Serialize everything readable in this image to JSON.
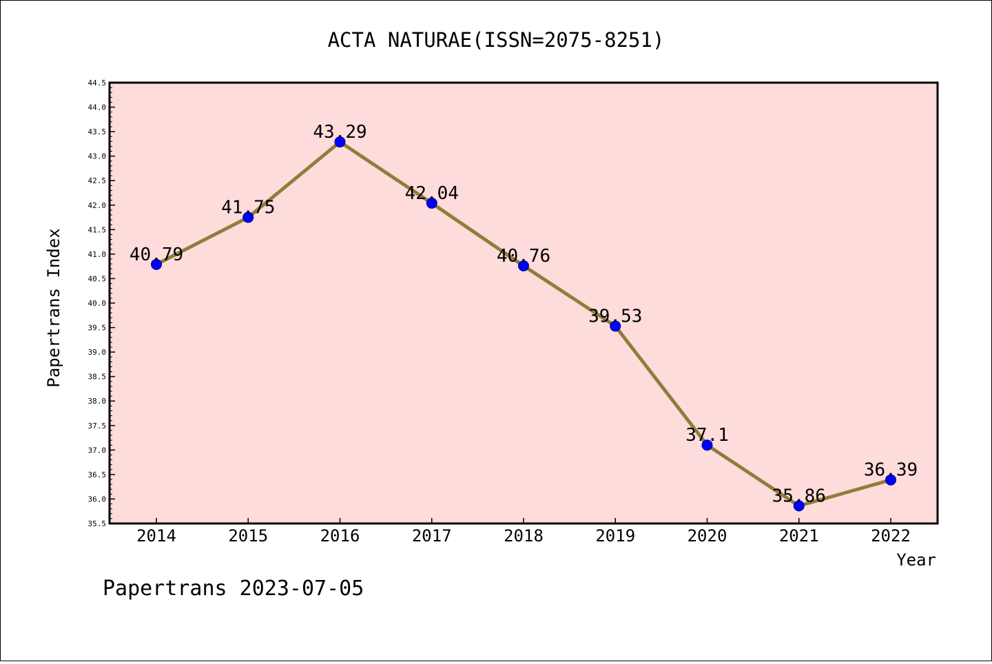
{
  "chart_data": {
    "type": "line",
    "title": "ACTA NATURAE(ISSN=2075-8251)",
    "xlabel": "Year",
    "ylabel": "Papertrans Index",
    "categories": [
      "2014",
      "2015",
      "2016",
      "2017",
      "2018",
      "2019",
      "2020",
      "2021",
      "2022"
    ],
    "series": [
      {
        "values": [
          40.79,
          41.75,
          43.29,
          42.04,
          40.76,
          39.53,
          37.1,
          35.86,
          36.39
        ],
        "labels": [
          "40.79",
          "41.75",
          "43.29",
          "42.04",
          "40.76",
          "39.53",
          "37.1",
          "35.86",
          "36.39"
        ]
      }
    ],
    "ylim": [
      35.5,
      44.5
    ],
    "y_ticks": [
      "35.5",
      "36.0",
      "36.5",
      "37.0",
      "37.5",
      "38.0",
      "38.5",
      "39.0",
      "39.5",
      "40.0",
      "40.5",
      "41.0",
      "41.5",
      "42.0",
      "42.5",
      "43.0",
      "43.5",
      "44.0",
      "44.5"
    ],
    "grid": false,
    "footer": "Papertrans 2023-07-05",
    "colors": {
      "plot_background": "#fddcdb",
      "line": "#8f7e3a",
      "marker": "#0000ff",
      "axis": "#000000"
    }
  }
}
